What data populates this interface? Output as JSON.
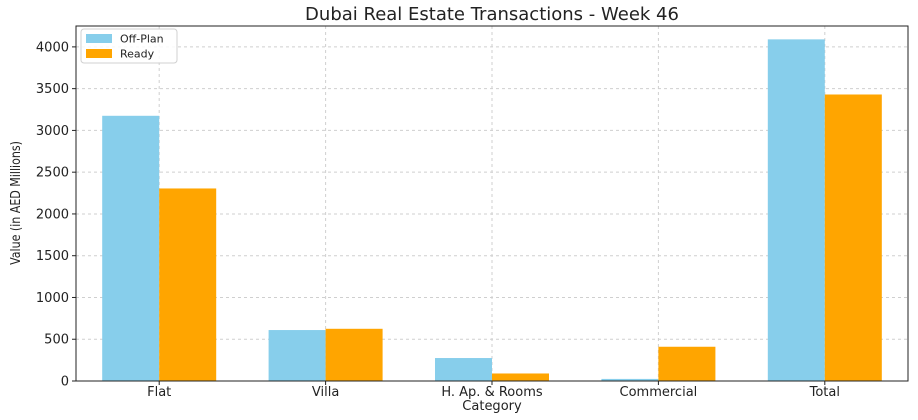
{
  "chart_data": {
    "type": "bar",
    "title": "Dubai Real Estate Transactions - Week 46",
    "xlabel": "Category",
    "ylabel": "Value (in AED Millions)",
    "categories": [
      "Flat",
      "Villa",
      "H. Ap. & Rooms",
      "Commercial",
      "Total"
    ],
    "series": [
      {
        "name": "Off-Plan",
        "color": "#87ceeb",
        "values": [
          3175,
          610,
          275,
          25,
          4090
        ]
      },
      {
        "name": "Ready",
        "color": "#ffa500",
        "values": [
          2305,
          625,
          90,
          410,
          3430
        ]
      }
    ],
    "ylim": [
      0,
      4250
    ],
    "yticks": [
      0,
      500,
      1000,
      1500,
      2000,
      2500,
      3000,
      3500,
      4000
    ],
    "grid": true,
    "legend_position": "top-left"
  }
}
